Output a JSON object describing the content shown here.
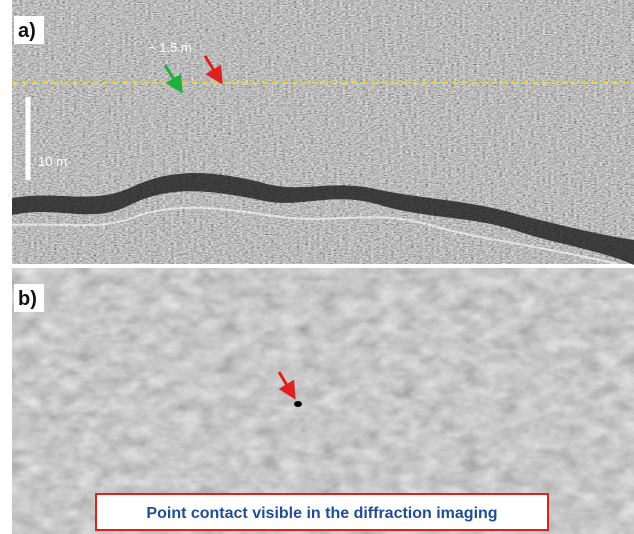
{
  "panels": [
    {
      "label": "a)",
      "annotations": [
        "~ 1.5 m",
        "10 m"
      ]
    },
    {
      "label": "b)",
      "caption": "Point contact visible in the diffraction imaging"
    }
  ]
}
